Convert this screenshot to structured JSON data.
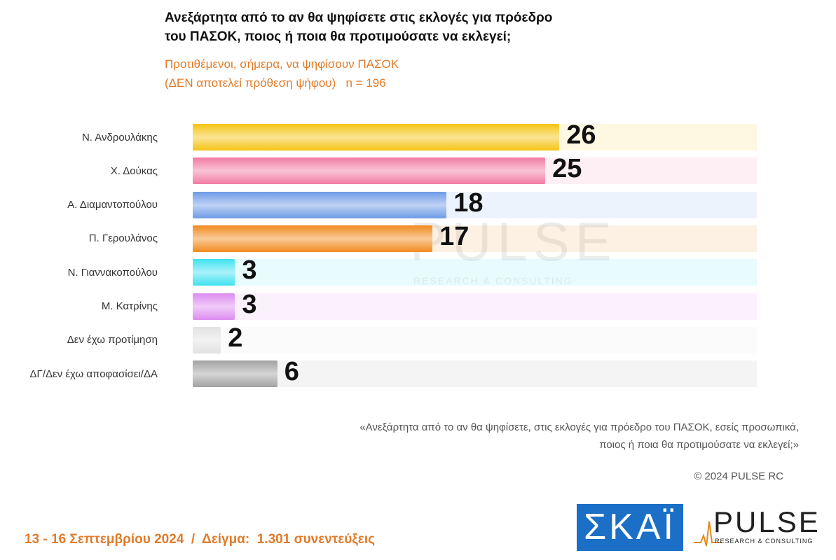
{
  "chart_data": {
    "type": "bar",
    "orientation": "horizontal",
    "title": [
      "Ανεξάρτητα από το αν θα ψηφίσετε στις εκλογές για πρόεδρο",
      "του ΠΑΣΟΚ, ποιος ή ποια θα προτιμούσατε να εκλεγεί;"
    ],
    "subtitle": [
      "Προτιθέμενοι, σήμερα, να ψηφίσουν ΠΑΣΟΚ",
      "(ΔΕΝ αποτελεί πρόθεση ψήφου)   n = 196"
    ],
    "categories": [
      "Ν. Ανδρουλάκης",
      "Χ. Δούκας",
      "Α. Διαμαντοπούλου",
      "Π. Γερουλάνος",
      "Ν. Γιαννακοπούλου",
      "Μ. Κατρίνης",
      "Δεν έχω προτίμηση",
      "ΔΓ/Δεν έχω αποφασίσει/ΔΑ"
    ],
    "values": [
      26,
      25,
      18,
      17,
      3,
      3,
      2,
      6
    ],
    "colors": [
      "#f4c414",
      "#f27ba2",
      "#6e9be6",
      "#f28a1e",
      "#3fe2f0",
      "#dc8cf0",
      "#e2e2e2",
      "#a2a2a2"
    ],
    "xlim": [
      0,
      40
    ],
    "watermark": [
      "PULSE",
      "RESEARCH & CONSULTING"
    ],
    "footnote": [
      "«Ανεξάρτητα από το αν θα ψηφίσετε, στις εκλογές για πρόεδρο του ΠΑΣΟΚ, εσείς προσωπικά,",
      "ποιος ή ποια θα προτιμούσατε να εκλεγεί;»"
    ],
    "copyright": "© 2024 PULSE RC",
    "date_line": "13 - 16 Σεπτεμβρίου 2024  /  Δείγμα:  1.301 συνεντεύξεις",
    "logos": {
      "skai": "ΣΚΑΪ",
      "pulse": "PULSE",
      "pulse_tagline": "RESEARCH & CONSULTING"
    }
  }
}
